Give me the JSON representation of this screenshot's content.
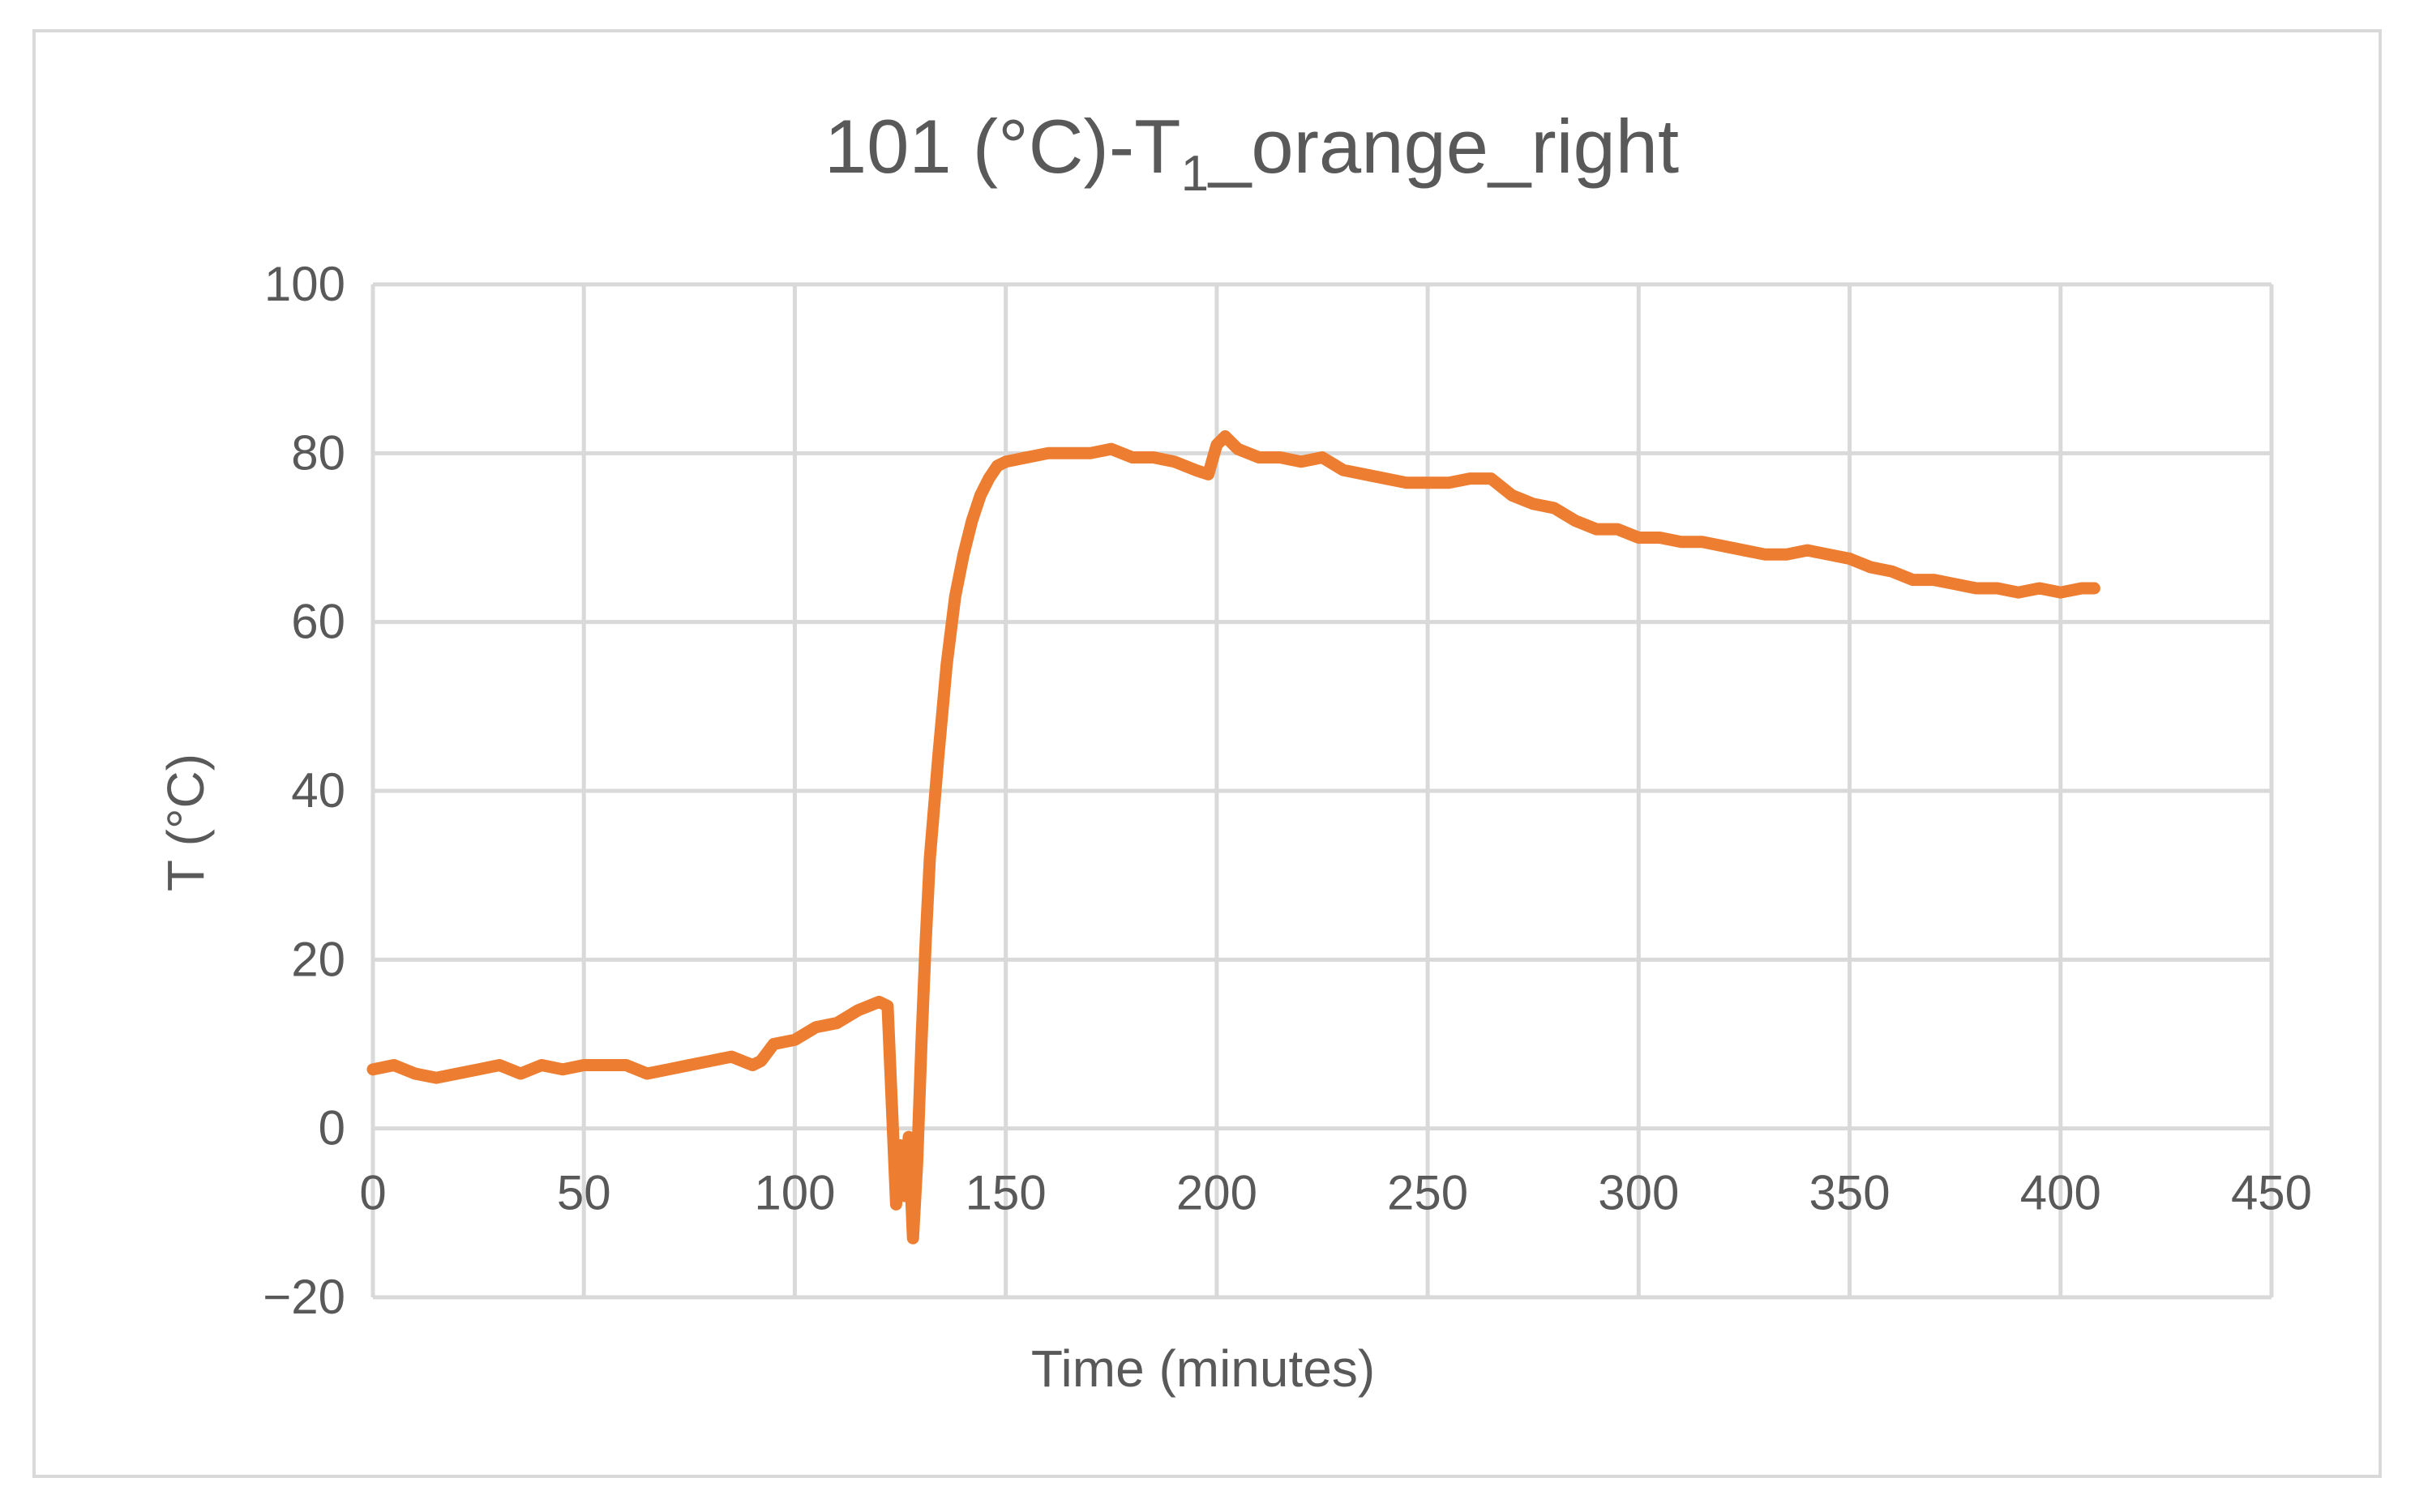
{
  "chart_data": {
    "type": "line",
    "title": {
      "prefix": "101 (°C)-T",
      "subscript": "1",
      "suffix": "_orange_right"
    },
    "xlabel": "Time (minutes)",
    "ylabel": "T (°C)",
    "xlim": [
      0,
      450
    ],
    "ylim": [
      -20,
      100
    ],
    "x_ticks": [
      "0",
      "50",
      "100",
      "150",
      "200",
      "250",
      "300",
      "350",
      "400",
      "450"
    ],
    "y_ticks": [
      "100",
      "80",
      "60",
      "40",
      "20",
      "0",
      "−20"
    ],
    "grid": true,
    "legend": "none",
    "colors": {
      "series": "#ed7d31",
      "grid": "#d9d9d9",
      "text": "#595959"
    },
    "series": [
      {
        "x": [
          0,
          5,
          10,
          15,
          20,
          25,
          30,
          35,
          40,
          45,
          50,
          55,
          60,
          65,
          70,
          75,
          80,
          85,
          90,
          92,
          95,
          100,
          105,
          110,
          115,
          120,
          122,
          124,
          125,
          126,
          127,
          128,
          129,
          130,
          131,
          132,
          134,
          136,
          138,
          140,
          142,
          144,
          146,
          148,
          150,
          155,
          160,
          170,
          175,
          180,
          185,
          190,
          195,
          198,
          200,
          202,
          205,
          210,
          215,
          220,
          225,
          230,
          235,
          240,
          245,
          250,
          255,
          260,
          265,
          270,
          275,
          280,
          285,
          290,
          295,
          300,
          305,
          310,
          315,
          320,
          325,
          330,
          335,
          340,
          345,
          350,
          355,
          360,
          365,
          370,
          375,
          380,
          385,
          390,
          395,
          400,
          405,
          408
        ],
        "y": [
          7,
          7.5,
          6.5,
          6,
          6.5,
          7,
          7.5,
          6.5,
          7.5,
          7,
          7.5,
          7.5,
          7.5,
          6.5,
          7,
          7.5,
          8,
          8.5,
          7.5,
          8,
          10,
          10.5,
          12,
          12.5,
          14,
          15,
          14.5,
          -9,
          -2,
          -8,
          -1,
          -13,
          -4,
          10,
          22,
          32,
          44,
          55,
          63,
          68,
          72,
          75,
          77,
          78.5,
          79,
          79.5,
          80,
          80,
          80.5,
          79.5,
          79.5,
          79,
          78,
          77.5,
          81,
          82,
          80.5,
          79.5,
          79.5,
          79,
          79.5,
          78,
          77.5,
          77,
          76.5,
          76.5,
          76.5,
          77,
          77,
          75,
          74,
          73.5,
          72,
          71,
          71,
          70,
          70,
          69.5,
          69.5,
          69,
          68.5,
          68,
          68,
          68.5,
          68,
          67.5,
          66.5,
          66,
          65,
          65,
          64.5,
          64,
          64,
          63.5,
          64,
          63.5,
          64,
          64
        ]
      }
    ]
  }
}
